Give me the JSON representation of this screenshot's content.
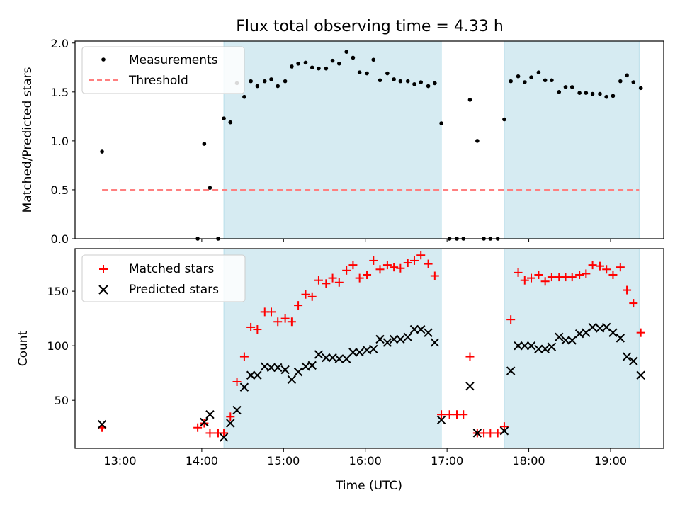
{
  "chart_data": {
    "type": "scatter",
    "title": "Flux total observing time = 4.33 h",
    "xlabel": "Time (UTC)",
    "x_unit": "hours UTC",
    "xlim": [
      12.45,
      19.65
    ],
    "xticks": [
      13,
      14,
      15,
      16,
      17,
      18,
      19
    ],
    "xtick_labels": [
      "13:00",
      "14:00",
      "15:00",
      "16:00",
      "17:00",
      "18:00",
      "19:00"
    ],
    "shaded_intervals": [
      [
        14.27,
        16.93
      ],
      [
        17.7,
        19.35
      ]
    ],
    "shade_color": "#add8e6",
    "panels": [
      {
        "name": "ratio",
        "ylabel": "Matched/Predicted stars",
        "ylim": [
          0,
          2.02
        ],
        "yticks": [
          0.0,
          0.5,
          1.0,
          1.5,
          2.0
        ],
        "ytick_labels": [
          "0.0",
          "0.5",
          "1.0",
          "1.5",
          "2.0"
        ],
        "legend_location": "upper-left",
        "threshold": {
          "name": "Threshold",
          "y": 0.5,
          "x_range": [
            12.78,
            19.35
          ],
          "color": "#ff7f7f"
        },
        "series": [
          {
            "name": "Measurements",
            "marker": "dot",
            "color": "#000000",
            "points": [
              [
                12.78,
                0.89
              ],
              [
                13.95,
                0.0
              ],
              [
                14.03,
                0.97
              ],
              [
                14.1,
                0.52
              ],
              [
                14.2,
                0.0
              ],
              [
                14.27,
                1.23
              ],
              [
                14.35,
                1.19
              ],
              [
                14.43,
                1.59
              ],
              [
                14.52,
                1.45
              ],
              [
                14.6,
                1.61
              ],
              [
                14.68,
                1.56
              ],
              [
                14.77,
                1.61
              ],
              [
                14.85,
                1.63
              ],
              [
                14.93,
                1.56
              ],
              [
                15.02,
                1.61
              ],
              [
                15.1,
                1.76
              ],
              [
                15.18,
                1.79
              ],
              [
                15.27,
                1.8
              ],
              [
                15.35,
                1.75
              ],
              [
                15.43,
                1.74
              ],
              [
                15.52,
                1.74
              ],
              [
                15.6,
                1.82
              ],
              [
                15.68,
                1.79
              ],
              [
                15.77,
                1.91
              ],
              [
                15.85,
                1.85
              ],
              [
                15.93,
                1.7
              ],
              [
                16.02,
                1.69
              ],
              [
                16.1,
                1.83
              ],
              [
                16.18,
                1.62
              ],
              [
                16.27,
                1.69
              ],
              [
                16.35,
                1.63
              ],
              [
                16.43,
                1.61
              ],
              [
                16.52,
                1.61
              ],
              [
                16.6,
                1.58
              ],
              [
                16.68,
                1.6
              ],
              [
                16.77,
                1.56
              ],
              [
                16.85,
                1.59
              ],
              [
                16.93,
                1.18
              ],
              [
                17.03,
                0.0
              ],
              [
                17.12,
                0.0
              ],
              [
                17.2,
                0.0
              ],
              [
                17.28,
                1.42
              ],
              [
                17.37,
                1.0
              ],
              [
                17.45,
                0.0
              ],
              [
                17.53,
                0.0
              ],
              [
                17.62,
                0.0
              ],
              [
                17.7,
                1.22
              ],
              [
                17.78,
                1.61
              ],
              [
                17.87,
                1.66
              ],
              [
                17.95,
                1.6
              ],
              [
                18.03,
                1.65
              ],
              [
                18.12,
                1.7
              ],
              [
                18.2,
                1.62
              ],
              [
                18.28,
                1.62
              ],
              [
                18.37,
                1.5
              ],
              [
                18.45,
                1.55
              ],
              [
                18.53,
                1.55
              ],
              [
                18.62,
                1.49
              ],
              [
                18.7,
                1.49
              ],
              [
                18.78,
                1.48
              ],
              [
                18.87,
                1.48
              ],
              [
                18.95,
                1.45
              ],
              [
                19.03,
                1.46
              ],
              [
                19.12,
                1.61
              ],
              [
                19.2,
                1.67
              ],
              [
                19.28,
                1.6
              ],
              [
                19.37,
                1.54
              ]
            ]
          }
        ]
      },
      {
        "name": "counts",
        "ylabel": "Count",
        "ylim": [
          6,
          189
        ],
        "yticks": [
          50,
          100,
          150
        ],
        "ytick_labels": [
          "50",
          "100",
          "150"
        ],
        "legend_location": "upper-left",
        "series": [
          {
            "name": "Matched stars",
            "marker": "plus",
            "color": "#ff0000",
            "points": [
              [
                12.78,
                25
              ],
              [
                13.95,
                25
              ],
              [
                14.03,
                29
              ],
              [
                14.1,
                20
              ],
              [
                14.2,
                20
              ],
              [
                14.27,
                20
              ],
              [
                14.35,
                35
              ],
              [
                14.43,
                67
              ],
              [
                14.52,
                90
              ],
              [
                14.6,
                117
              ],
              [
                14.68,
                115
              ],
              [
                14.77,
                131
              ],
              [
                14.85,
                131
              ],
              [
                14.93,
                122
              ],
              [
                15.02,
                125
              ],
              [
                15.1,
                122
              ],
              [
                15.18,
                137
              ],
              [
                15.27,
                147
              ],
              [
                15.35,
                145
              ],
              [
                15.43,
                160
              ],
              [
                15.52,
                157
              ],
              [
                15.6,
                162
              ],
              [
                15.68,
                158
              ],
              [
                15.77,
                169
              ],
              [
                15.85,
                174
              ],
              [
                15.93,
                162
              ],
              [
                16.02,
                165
              ],
              [
                16.1,
                178
              ],
              [
                16.18,
                170
              ],
              [
                16.27,
                174
              ],
              [
                16.35,
                172
              ],
              [
                16.43,
                171
              ],
              [
                16.52,
                176
              ],
              [
                16.6,
                178
              ],
              [
                16.68,
                183
              ],
              [
                16.77,
                175
              ],
              [
                16.85,
                164
              ],
              [
                16.93,
                37
              ],
              [
                17.03,
                37
              ],
              [
                17.12,
                37
              ],
              [
                17.2,
                37
              ],
              [
                17.28,
                90
              ],
              [
                17.37,
                20
              ],
              [
                17.45,
                20
              ],
              [
                17.53,
                20
              ],
              [
                17.62,
                20
              ],
              [
                17.7,
                26
              ],
              [
                17.78,
                124
              ],
              [
                17.87,
                167
              ],
              [
                17.95,
                160
              ],
              [
                18.03,
                162
              ],
              [
                18.12,
                165
              ],
              [
                18.2,
                159
              ],
              [
                18.28,
                163
              ],
              [
                18.37,
                163
              ],
              [
                18.45,
                163
              ],
              [
                18.53,
                163
              ],
              [
                18.62,
                165
              ],
              [
                18.7,
                166
              ],
              [
                18.78,
                174
              ],
              [
                18.87,
                173
              ],
              [
                18.95,
                170
              ],
              [
                19.03,
                165
              ],
              [
                19.12,
                172
              ],
              [
                19.2,
                151
              ],
              [
                19.28,
                139
              ],
              [
                19.37,
                112
              ]
            ]
          },
          {
            "name": "Predicted stars",
            "marker": "x",
            "color": "#000000",
            "points": [
              [
                12.78,
                28
              ],
              [
                14.03,
                30
              ],
              [
                14.1,
                37
              ],
              [
                14.27,
                16
              ],
              [
                14.35,
                29
              ],
              [
                14.43,
                41
              ],
              [
                14.52,
                62
              ],
              [
                14.6,
                73
              ],
              [
                14.68,
                73
              ],
              [
                14.77,
                81
              ],
              [
                14.85,
                80
              ],
              [
                14.93,
                80
              ],
              [
                15.02,
                78
              ],
              [
                15.1,
                69
              ],
              [
                15.18,
                76
              ],
              [
                15.27,
                81
              ],
              [
                15.35,
                82
              ],
              [
                15.43,
                92
              ],
              [
                15.52,
                89
              ],
              [
                15.6,
                89
              ],
              [
                15.68,
                88
              ],
              [
                15.77,
                88
              ],
              [
                15.85,
                94
              ],
              [
                15.93,
                94
              ],
              [
                16.02,
                96
              ],
              [
                16.1,
                97
              ],
              [
                16.18,
                106
              ],
              [
                16.27,
                103
              ],
              [
                16.35,
                106
              ],
              [
                16.43,
                106
              ],
              [
                16.52,
                108
              ],
              [
                16.6,
                115
              ],
              [
                16.68,
                115
              ],
              [
                16.77,
                112
              ],
              [
                16.85,
                103
              ],
              [
                16.93,
                32
              ],
              [
                17.28,
                63
              ],
              [
                17.37,
                20
              ],
              [
                17.7,
                22
              ],
              [
                17.78,
                77
              ],
              [
                17.87,
                100
              ],
              [
                17.95,
                100
              ],
              [
                18.03,
                100
              ],
              [
                18.12,
                97
              ],
              [
                18.2,
                97
              ],
              [
                18.28,
                99
              ],
              [
                18.37,
                108
              ],
              [
                18.45,
                105
              ],
              [
                18.53,
                105
              ],
              [
                18.62,
                111
              ],
              [
                18.7,
                112
              ],
              [
                18.78,
                117
              ],
              [
                18.87,
                116
              ],
              [
                18.95,
                117
              ],
              [
                19.03,
                112
              ],
              [
                19.12,
                107
              ],
              [
                19.2,
                90
              ],
              [
                19.28,
                86
              ],
              [
                19.37,
                73
              ]
            ]
          }
        ]
      }
    ]
  }
}
